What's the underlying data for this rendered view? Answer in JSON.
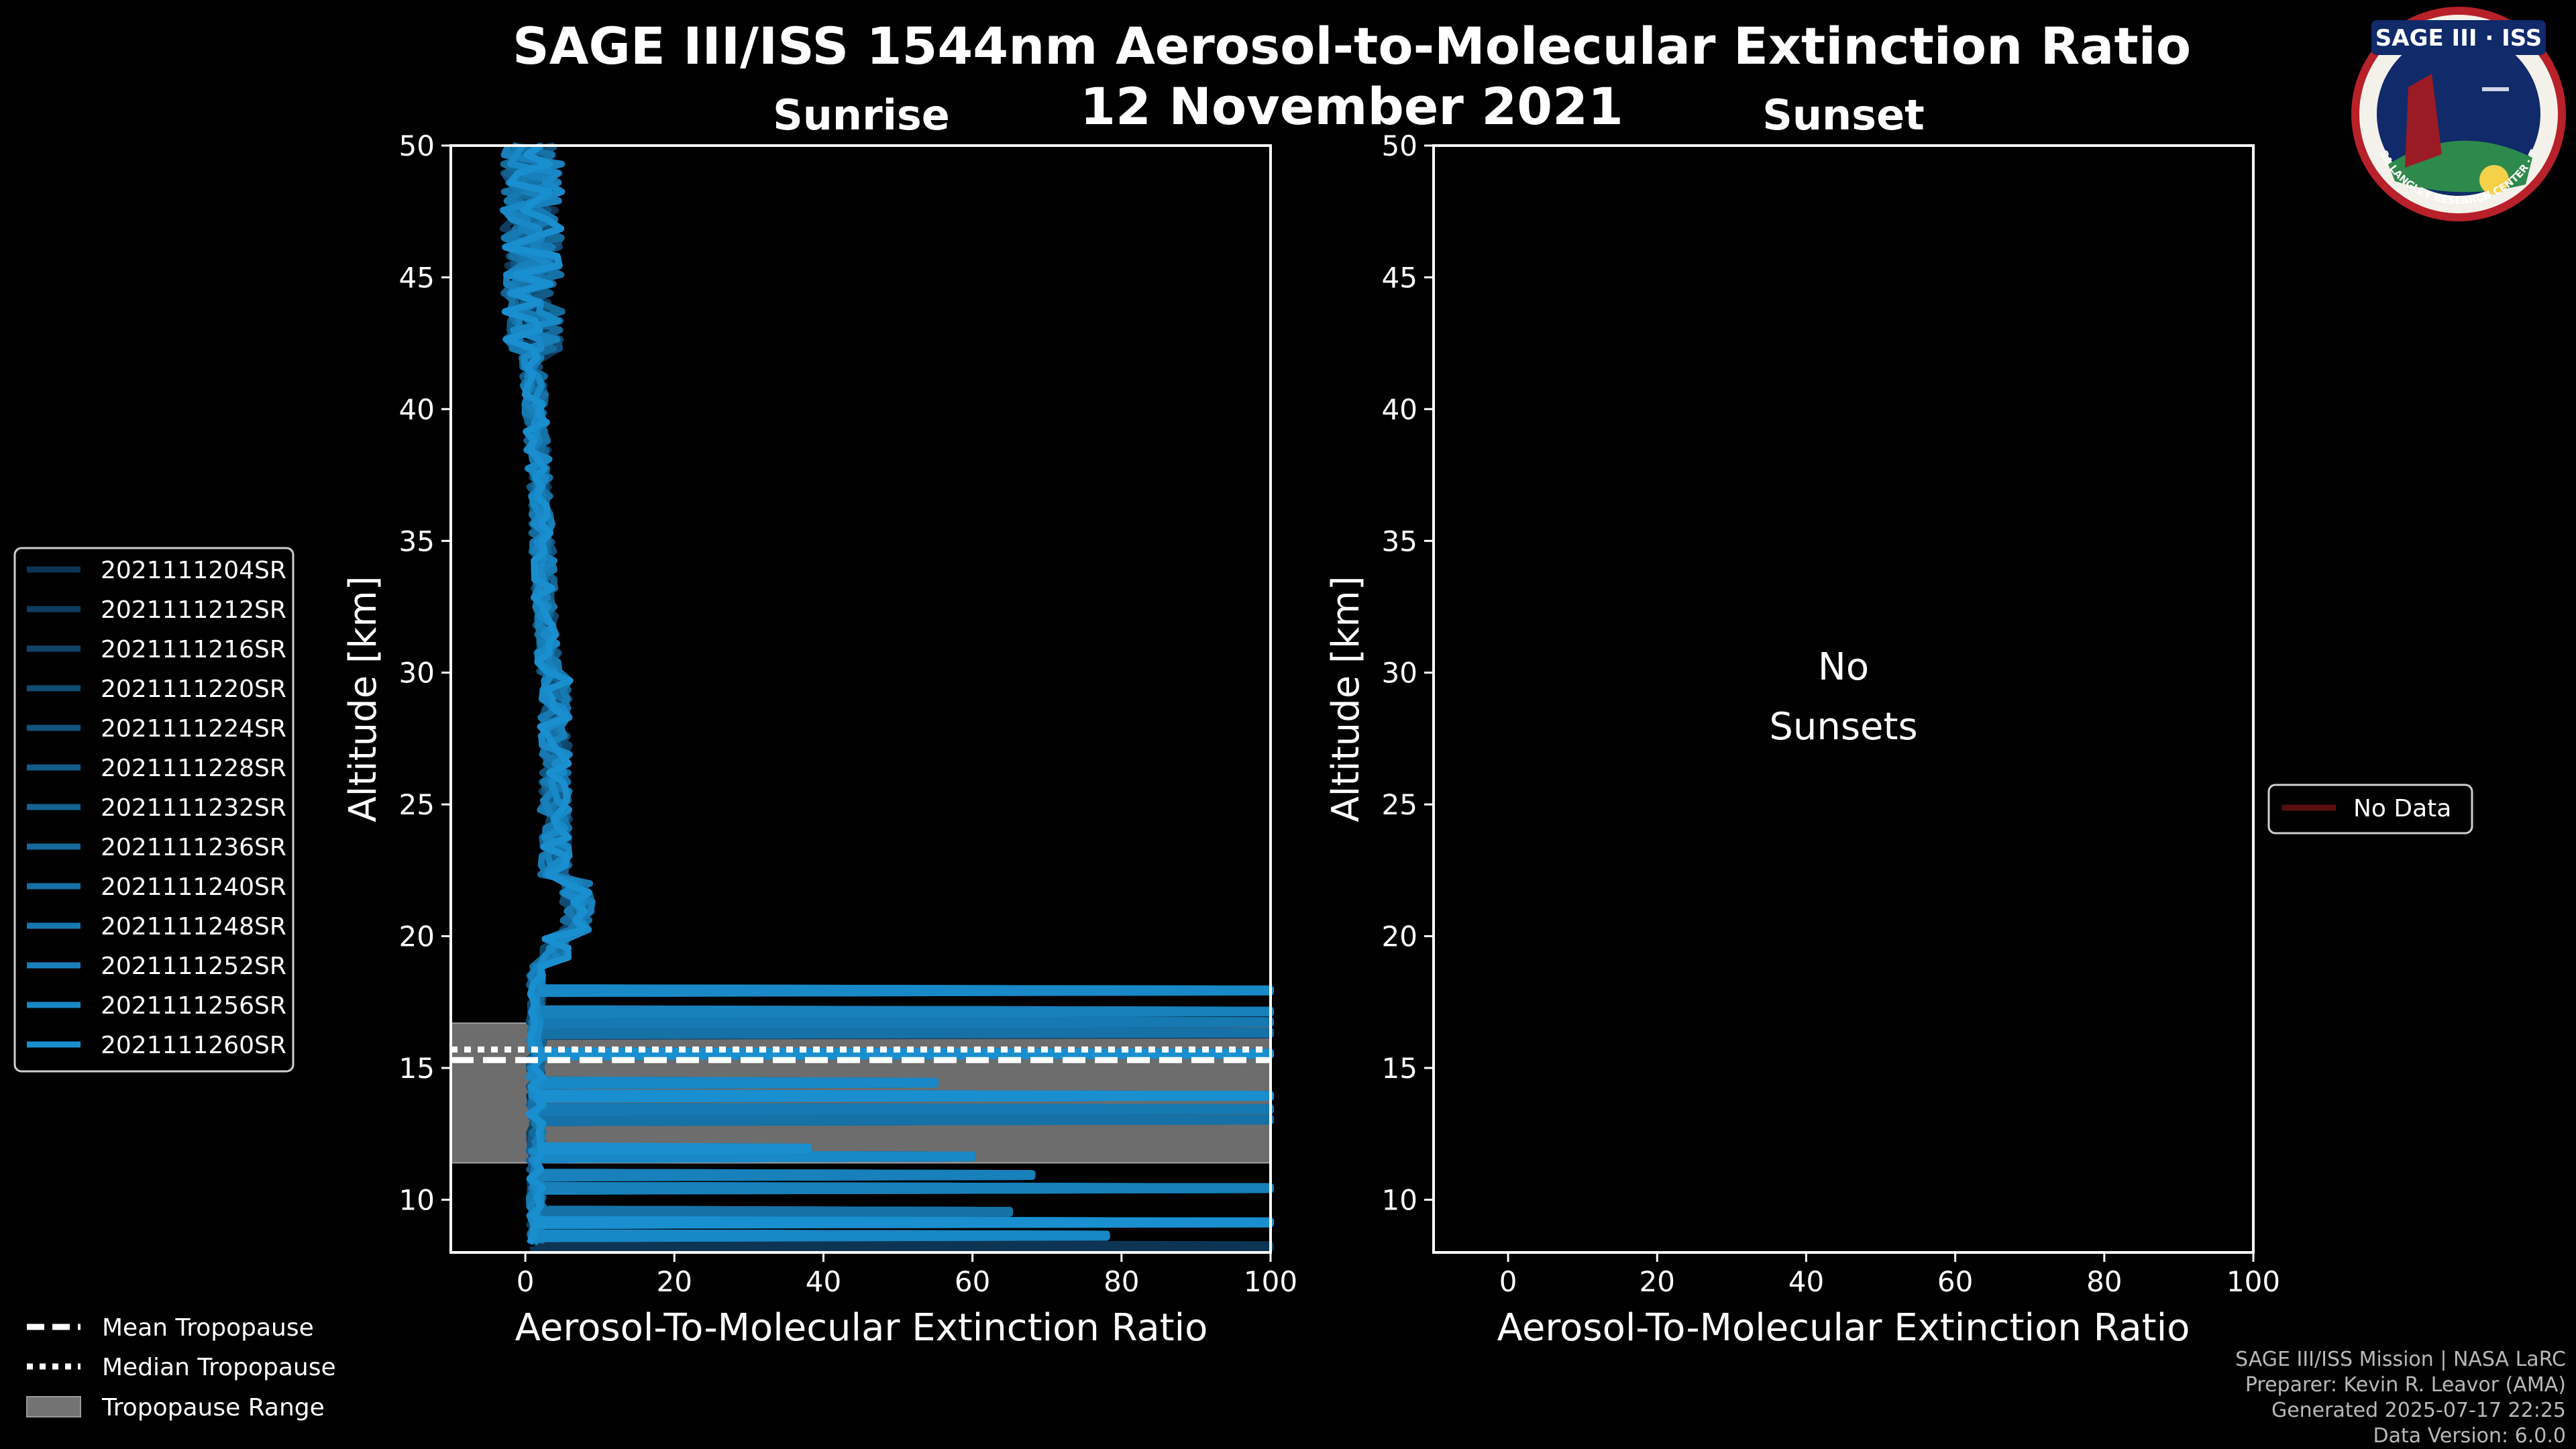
{
  "chart_data": {
    "type": "line",
    "title": "SAGE III/ISS 1544nm Aerosol-to-Molecular Extinction Ratio",
    "subtitle": "12 November 2021",
    "logo": {
      "text": "SAGE III · ISS",
      "ring_text": "BALL · NASA LANGLEY RESEARCH CENTER · TAS-I · ESA"
    },
    "footer": [
      "SAGE III/ISS Mission | NASA LaRC",
      "Preparer: Kevin R. Leavor (AMA)",
      "Generated 2025-07-17 22:25",
      "Data Version: 6.0.0"
    ],
    "colors": {
      "series_dark": "#0d3553",
      "series_light": "#1a8fd0",
      "range_fill": "#737373",
      "no_data": "#5a0f0f"
    },
    "tropopause": {
      "mean_km": 15.3,
      "median_km": 15.7,
      "range_km": [
        11.4,
        16.7
      ]
    },
    "tropopause_legend": [
      "Mean Tropopause",
      "Median Tropopause",
      "Tropopause Range"
    ],
    "panels": [
      {
        "title": "Sunrise",
        "xlabel": "Aerosol-To-Molecular Extinction Ratio",
        "ylabel": "Altitude [km]",
        "xlim": [
          -10,
          100
        ],
        "ylim": [
          8,
          50
        ],
        "xticks": [
          0,
          20,
          40,
          60,
          80,
          100
        ],
        "yticks": [
          10,
          15,
          20,
          25,
          30,
          35,
          40,
          45,
          50
        ],
        "legend": [
          "2021111204SR",
          "2021111212SR",
          "2021111216SR",
          "2021111220SR",
          "2021111224SR",
          "2021111228SR",
          "2021111232SR",
          "2021111236SR",
          "2021111240SR",
          "2021111248SR",
          "2021111252SR",
          "2021111256SR",
          "2021111260SR"
        ],
        "spikes_km": [
          8.3,
          8.7,
          9.2,
          9.6,
          10.5,
          11.0,
          11.7,
          12.0,
          13.1,
          13.5,
          14.0,
          14.5,
          15.6,
          16.4,
          16.8,
          17.2,
          18.0
        ],
        "spike_max_ratio": [
          100,
          78,
          100,
          65,
          100,
          68,
          60,
          38,
          100,
          100,
          100,
          55,
          100,
          100,
          100,
          100,
          100
        ]
      },
      {
        "title": "Sunset",
        "xlabel": "Aerosol-To-Molecular Extinction Ratio",
        "ylabel": "Altitude [km]",
        "xlim": [
          -10,
          100
        ],
        "ylim": [
          8,
          50
        ],
        "xticks": [
          0,
          20,
          40,
          60,
          80,
          100
        ],
        "yticks": [
          10,
          15,
          20,
          25,
          30,
          35,
          40,
          45,
          50
        ],
        "annotation": [
          "No",
          "Sunsets"
        ],
        "legend": [
          "No Data"
        ]
      }
    ]
  }
}
